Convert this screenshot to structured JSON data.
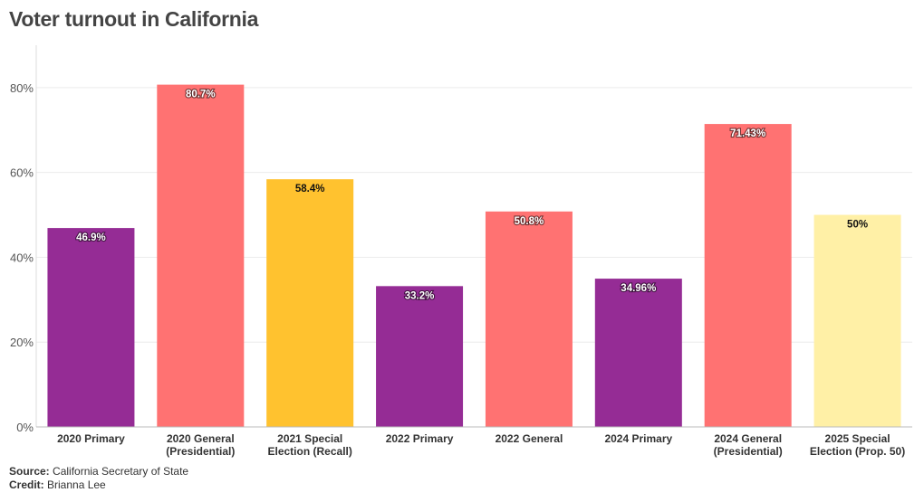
{
  "title": "Voter turnout in California",
  "source_label": "Source:",
  "source": "California Secretary of State",
  "credit_label": "Credit:",
  "credit": "Brianna Lee",
  "chart_data": {
    "type": "bar",
    "title": "Voter turnout in California",
    "xlabel": "",
    "ylabel": "",
    "ylim": [
      0,
      90
    ],
    "yticks": [
      0,
      20,
      40,
      60,
      80
    ],
    "ytick_labels": [
      "0%",
      "20%",
      "40%",
      "60%",
      "80%"
    ],
    "grid": true,
    "categories": [
      [
        "2020 Primary"
      ],
      [
        "2020 General",
        "(Presidential)"
      ],
      [
        "2021 Special",
        "Election (Recall)"
      ],
      [
        "2022 Primary"
      ],
      [
        "2022 General"
      ],
      [
        "2024 Primary"
      ],
      [
        "2024 General",
        "(Presidential)"
      ],
      [
        "2025 Special",
        "Election (Prop. 50)"
      ]
    ],
    "values": [
      46.9,
      80.7,
      58.4,
      33.2,
      50.8,
      34.96,
      71.43,
      50
    ],
    "data_labels": [
      "46.9%",
      "80.7%",
      "58.4%",
      "33.2%",
      "50.8%",
      "34.96%",
      "71.43%",
      "50%"
    ],
    "colors": [
      "#952c95",
      "#ff7272",
      "#ffc22f",
      "#952c95",
      "#ff7272",
      "#952c95",
      "#ff7272",
      "#fff0a6"
    ],
    "label_styles": [
      "light",
      "light",
      "dark",
      "light",
      "light",
      "light",
      "light",
      "dark"
    ]
  }
}
